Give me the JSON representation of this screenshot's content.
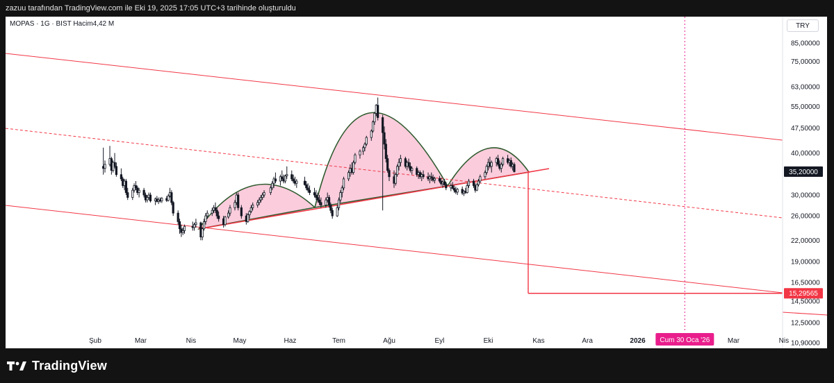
{
  "header": {
    "caption": "zazuu tarafından TradingView.com ile Eki 19, 2025 17:05 UTC+3 tarihinde oluşturuldu"
  },
  "symbol": {
    "info": "MOPAS · 1G · BIST  Hacim4,42 M"
  },
  "currency": "TRY",
  "brand": {
    "name": "TradingView"
  },
  "chart_data": {
    "type": "candlestick",
    "scale": "log",
    "y_ticks": [
      "85,00000",
      "75,00000",
      "63,00000",
      "55,00000",
      "47,50000",
      "40,00000",
      "35,00000",
      "30,00000",
      "26,00000",
      "22,00000",
      "19,00000",
      "16,50000",
      "14,50000",
      "12,50000",
      "10,90000"
    ],
    "x_ticks": [
      "Şub",
      "Mar",
      "Nis",
      "May",
      "Haz",
      "Tem",
      "Ağu",
      "Eyl",
      "Eki",
      "Kas",
      "Ara",
      "2026",
      "Mar",
      "Nis"
    ],
    "bold_x_ticks": [
      "2026"
    ],
    "price_labels": [
      {
        "text": "35,20000",
        "value": 35.2,
        "style": "current"
      },
      {
        "text": "15,29565",
        "value": 15.29565,
        "style": "target"
      }
    ],
    "crosshair_date_label": "Cum 30 Oca '26",
    "colors": {
      "up": "#131722",
      "down": "#131722",
      "trend": "#f23645",
      "arc_stroke": "#2e5a2e",
      "arc_fill": "#f8bbd0",
      "date_badge": "#e91e8c",
      "target_badge": "#f23645",
      "current_badge": "#131722"
    },
    "candles": [
      [
        "2025-02-06",
        36.5,
        41.5,
        34.5,
        36.0
      ],
      [
        "2025-02-07",
        36.0,
        38.0,
        35.0,
        37.0
      ],
      [
        "2025-02-10",
        37.0,
        42.0,
        36.5,
        38.5
      ],
      [
        "2025-02-11",
        38.5,
        39.0,
        34.5,
        35.5
      ],
      [
        "2025-02-12",
        35.5,
        38.0,
        35.0,
        37.5
      ],
      [
        "2025-02-13",
        37.5,
        40.0,
        36.0,
        36.5
      ],
      [
        "2025-02-14",
        36.5,
        37.5,
        34.0,
        34.5
      ],
      [
        "2025-02-17",
        34.5,
        36.0,
        33.0,
        33.5
      ],
      [
        "2025-02-18",
        33.5,
        34.0,
        31.5,
        32.0
      ],
      [
        "2025-02-19",
        32.0,
        33.5,
        31.0,
        33.0
      ],
      [
        "2025-02-20",
        33.0,
        33.5,
        30.0,
        30.5
      ],
      [
        "2025-02-21",
        30.5,
        31.5,
        29.0,
        29.5
      ],
      [
        "2025-02-24",
        29.5,
        31.5,
        29.0,
        31.0
      ],
      [
        "2025-02-25",
        31.0,
        32.5,
        30.5,
        32.0
      ],
      [
        "2025-02-26",
        32.0,
        33.0,
        31.0,
        31.5
      ],
      [
        "2025-02-27",
        31.5,
        32.0,
        30.0,
        30.5
      ],
      [
        "2025-02-28",
        30.5,
        31.5,
        29.5,
        31.0
      ],
      [
        "2025-03-03",
        31.0,
        31.5,
        29.5,
        30.0
      ],
      [
        "2025-03-04",
        30.0,
        30.5,
        28.5,
        29.0
      ],
      [
        "2025-03-05",
        29.0,
        30.0,
        28.5,
        29.5
      ],
      [
        "2025-03-06",
        29.5,
        30.5,
        29.0,
        30.0
      ],
      [
        "2025-03-07",
        30.0,
        30.5,
        28.5,
        28.8
      ],
      [
        "2025-03-10",
        28.8,
        29.5,
        28.0,
        29.2
      ],
      [
        "2025-03-11",
        29.2,
        29.8,
        28.5,
        28.7
      ],
      [
        "2025-03-12",
        28.7,
        29.5,
        28.2,
        29.0
      ],
      [
        "2025-03-13",
        29.0,
        29.5,
        28.5,
        28.8
      ],
      [
        "2025-03-14",
        28.8,
        29.6,
        28.4,
        29.3
      ],
      [
        "2025-03-17",
        29.3,
        29.8,
        28.6,
        28.9
      ],
      [
        "2025-03-18",
        28.9,
        30.2,
        28.7,
        29.8
      ],
      [
        "2025-03-19",
        29.8,
        31.5,
        29.5,
        30.5
      ],
      [
        "2025-03-20",
        30.5,
        31.0,
        28.0,
        28.5
      ],
      [
        "2025-03-21",
        28.5,
        28.8,
        26.0,
        26.5
      ],
      [
        "2025-03-24",
        26.5,
        27.0,
        24.5,
        25.0
      ],
      [
        "2025-03-25",
        25.0,
        25.5,
        23.0,
        23.8
      ],
      [
        "2025-03-26",
        23.8,
        24.5,
        22.5,
        23.2
      ],
      [
        "2025-03-27",
        23.2,
        24.0,
        22.8,
        23.5
      ],
      [
        "2025-03-28",
        23.5,
        24.5,
        23.0,
        24.2
      ],
      [
        "2025-04-02",
        24.2,
        25.0,
        23.5,
        24.0
      ],
      [
        "2025-04-03",
        24.0,
        24.8,
        23.5,
        24.5
      ],
      [
        "2025-04-04",
        24.5,
        25.5,
        24.0,
        24.8
      ],
      [
        "2025-04-07",
        24.8,
        25.0,
        22.0,
        22.5
      ],
      [
        "2025-04-08",
        22.5,
        24.0,
        22.0,
        23.8
      ],
      [
        "2025-04-09",
        23.8,
        25.5,
        23.5,
        25.0
      ],
      [
        "2025-04-10",
        25.0,
        26.5,
        24.5,
        26.0
      ],
      [
        "2025-04-11",
        26.0,
        27.0,
        25.5,
        26.5
      ],
      [
        "2025-04-14",
        26.5,
        27.5,
        26.0,
        27.0
      ],
      [
        "2025-04-15",
        27.0,
        28.0,
        26.5,
        27.5
      ],
      [
        "2025-04-16",
        27.5,
        28.5,
        26.5,
        27.0
      ],
      [
        "2025-04-17",
        27.0,
        27.5,
        25.5,
        26.0
      ],
      [
        "2025-04-18",
        26.0,
        26.8,
        25.0,
        25.5
      ],
      [
        "2025-04-21",
        25.5,
        26.0,
        24.0,
        24.5
      ],
      [
        "2025-04-22",
        24.5,
        26.0,
        24.2,
        25.8
      ],
      [
        "2025-04-24",
        25.8,
        27.0,
        25.5,
        26.5
      ],
      [
        "2025-04-25",
        26.5,
        28.0,
        26.0,
        27.5
      ],
      [
        "2025-04-28",
        27.5,
        29.0,
        27.0,
        28.5
      ],
      [
        "2025-04-29",
        28.5,
        30.5,
        28.0,
        30.0
      ],
      [
        "2025-04-30",
        30.0,
        30.5,
        27.0,
        27.5
      ],
      [
        "2025-05-02",
        27.5,
        28.0,
        25.5,
        26.0
      ],
      [
        "2025-05-05",
        26.0,
        26.5,
        24.5,
        25.0
      ],
      [
        "2025-05-06",
        25.0,
        26.5,
        24.8,
        26.2
      ],
      [
        "2025-05-07",
        26.2,
        27.0,
        25.5,
        26.8
      ],
      [
        "2025-05-08",
        26.8,
        28.0,
        26.5,
        27.5
      ],
      [
        "2025-05-09",
        27.5,
        28.5,
        27.0,
        28.0
      ],
      [
        "2025-05-12",
        28.0,
        29.0,
        27.5,
        28.5
      ],
      [
        "2025-05-13",
        28.5,
        29.5,
        28.0,
        29.0
      ],
      [
        "2025-05-14",
        29.0,
        30.0,
        28.5,
        29.5
      ],
      [
        "2025-05-15",
        29.5,
        30.5,
        29.0,
        30.0
      ],
      [
        "2025-05-16",
        30.0,
        31.0,
        29.5,
        30.5
      ],
      [
        "2025-05-20",
        30.5,
        32.0,
        30.0,
        31.5
      ],
      [
        "2025-05-21",
        31.5,
        33.0,
        31.0,
        32.5
      ],
      [
        "2025-05-22",
        32.5,
        34.0,
        31.5,
        33.5
      ],
      [
        "2025-05-23",
        33.5,
        35.0,
        32.5,
        33.0
      ],
      [
        "2025-05-26",
        33.0,
        34.5,
        32.0,
        34.0
      ],
      [
        "2025-05-27",
        34.0,
        35.5,
        33.0,
        33.5
      ],
      [
        "2025-05-28",
        33.5,
        34.5,
        32.5,
        33.0
      ],
      [
        "2025-05-29",
        33.0,
        34.5,
        32.5,
        34.2
      ],
      [
        "2025-05-30",
        34.2,
        36.5,
        33.5,
        34.5
      ],
      [
        "2025-06-02",
        34.5,
        35.5,
        33.0,
        33.5
      ],
      [
        "2025-06-03",
        33.5,
        34.5,
        32.5,
        33.0
      ],
      [
        "2025-06-04",
        33.0,
        34.0,
        32.0,
        32.5
      ],
      [
        "2025-06-05",
        32.5,
        33.5,
        31.5,
        33.0
      ],
      [
        "2025-06-10",
        33.0,
        34.0,
        32.0,
        32.2
      ],
      [
        "2025-06-11",
        32.2,
        33.0,
        31.0,
        31.5
      ],
      [
        "2025-06-12",
        31.5,
        32.5,
        30.5,
        31.0
      ],
      [
        "2025-06-13",
        31.0,
        32.0,
        30.0,
        30.5
      ],
      [
        "2025-06-16",
        30.5,
        31.5,
        29.5,
        30.0
      ],
      [
        "2025-06-17",
        30.0,
        31.0,
        29.0,
        29.5
      ],
      [
        "2025-06-18",
        29.5,
        30.5,
        28.5,
        29.0
      ],
      [
        "2025-06-19",
        29.0,
        30.0,
        28.0,
        28.5
      ],
      [
        "2025-06-20",
        28.5,
        29.5,
        27.5,
        28.0
      ],
      [
        "2025-06-23",
        28.0,
        29.5,
        27.5,
        29.0
      ],
      [
        "2025-06-24",
        29.0,
        30.5,
        28.5,
        29.5
      ],
      [
        "2025-06-25",
        29.5,
        30.0,
        27.5,
        28.0
      ],
      [
        "2025-06-26",
        28.0,
        28.5,
        26.5,
        27.0
      ],
      [
        "2025-06-27",
        27.0,
        27.5,
        25.5,
        26.0
      ],
      [
        "2025-06-30",
        26.0,
        28.0,
        25.8,
        27.5
      ],
      [
        "2025-07-01",
        27.5,
        29.5,
        27.0,
        29.0
      ],
      [
        "2025-07-02",
        29.0,
        31.0,
        28.5,
        30.5
      ],
      [
        "2025-07-03",
        30.5,
        32.0,
        29.5,
        31.5
      ],
      [
        "2025-07-04",
        31.5,
        34.0,
        31.0,
        33.5
      ],
      [
        "2025-07-07",
        33.5,
        35.5,
        33.0,
        35.0
      ],
      [
        "2025-07-08",
        35.0,
        37.0,
        34.0,
        36.0
      ],
      [
        "2025-07-09",
        36.0,
        37.5,
        34.5,
        35.0
      ],
      [
        "2025-07-10",
        35.0,
        38.0,
        34.5,
        37.5
      ],
      [
        "2025-07-11",
        37.5,
        40.0,
        37.0,
        39.5
      ],
      [
        "2025-07-14",
        39.5,
        41.0,
        38.5,
        40.5
      ],
      [
        "2025-07-16",
        40.5,
        42.0,
        39.5,
        41.5
      ],
      [
        "2025-07-17",
        41.5,
        43.0,
        40.5,
        42.5
      ],
      [
        "2025-07-18",
        42.5,
        45.0,
        42.0,
        44.5
      ],
      [
        "2025-07-21",
        44.5,
        47.0,
        43.5,
        46.5
      ],
      [
        "2025-07-22",
        46.5,
        50.0,
        46.0,
        49.5
      ],
      [
        "2025-07-23",
        49.5,
        53.0,
        48.5,
        52.5
      ],
      [
        "2025-07-24",
        52.5,
        56.0,
        51.5,
        55.5
      ],
      [
        "2025-07-25",
        55.5,
        58.5,
        50.0,
        51.0
      ],
      [
        "2025-07-28",
        51.0,
        52.0,
        27.0,
        46.0
      ],
      [
        "2025-07-29",
        46.0,
        48.0,
        41.0,
        42.5
      ],
      [
        "2025-07-30",
        42.5,
        44.0,
        37.5,
        38.5
      ],
      [
        "2025-07-31",
        38.5,
        39.5,
        35.0,
        35.5
      ],
      [
        "2025-08-01",
        35.5,
        36.0,
        33.0,
        34.0
      ],
      [
        "2025-08-04",
        34.0,
        35.5,
        31.5,
        32.5
      ],
      [
        "2025-08-05",
        32.5,
        35.0,
        32.0,
        34.5
      ],
      [
        "2025-08-06",
        34.5,
        37.0,
        34.0,
        36.5
      ],
      [
        "2025-08-07",
        36.5,
        38.5,
        35.5,
        37.5
      ],
      [
        "2025-08-08",
        37.5,
        39.5,
        36.5,
        38.5
      ],
      [
        "2025-08-11",
        38.5,
        39.0,
        36.0,
        36.5
      ],
      [
        "2025-08-12",
        36.5,
        38.0,
        35.5,
        37.5
      ],
      [
        "2025-08-13",
        37.5,
        38.5,
        36.0,
        36.5
      ],
      [
        "2025-08-14",
        36.5,
        37.5,
        35.0,
        35.5
      ],
      [
        "2025-08-15",
        35.5,
        36.5,
        34.5,
        36.0
      ],
      [
        "2025-08-18",
        36.0,
        36.5,
        34.0,
        34.5
      ],
      [
        "2025-08-19",
        34.5,
        35.5,
        33.5,
        35.0
      ],
      [
        "2025-08-20",
        35.0,
        35.5,
        33.5,
        34.0
      ],
      [
        "2025-08-21",
        34.0,
        35.0,
        33.0,
        34.5
      ],
      [
        "2025-08-22",
        34.5,
        35.5,
        33.5,
        34.0
      ],
      [
        "2025-08-25",
        34.0,
        35.0,
        33.0,
        33.5
      ],
      [
        "2025-08-26",
        33.5,
        34.5,
        32.5,
        34.0
      ],
      [
        "2025-08-27",
        34.0,
        35.0,
        33.0,
        33.8
      ],
      [
        "2025-08-28",
        33.8,
        34.5,
        32.8,
        33.2
      ],
      [
        "2025-08-29",
        33.2,
        34.0,
        32.5,
        33.6
      ],
      [
        "2025-09-01",
        33.6,
        34.2,
        32.6,
        33.0
      ],
      [
        "2025-09-02",
        33.0,
        33.8,
        32.0,
        32.4
      ],
      [
        "2025-09-03",
        32.4,
        33.2,
        31.5,
        32.8
      ],
      [
        "2025-09-04",
        32.8,
        33.5,
        32.0,
        32.2
      ],
      [
        "2025-09-05",
        32.2,
        32.8,
        31.0,
        31.5
      ],
      [
        "2025-09-08",
        31.5,
        32.5,
        30.8,
        32.0
      ],
      [
        "2025-09-09",
        32.0,
        32.8,
        31.2,
        31.4
      ],
      [
        "2025-09-10",
        31.4,
        32.0,
        30.5,
        31.0
      ],
      [
        "2025-09-11",
        31.0,
        31.8,
        30.2,
        30.6
      ],
      [
        "2025-09-12",
        30.6,
        31.5,
        30.0,
        31.2
      ],
      [
        "2025-09-15",
        31.2,
        31.8,
        30.0,
        30.4
      ],
      [
        "2025-09-16",
        30.4,
        31.0,
        29.8,
        30.8
      ],
      [
        "2025-09-17",
        30.8,
        31.5,
        30.2,
        30.5
      ],
      [
        "2025-09-18",
        30.5,
        32.5,
        30.3,
        32.0
      ],
      [
        "2025-09-19",
        32.0,
        33.5,
        31.5,
        33.0
      ],
      [
        "2025-09-22",
        33.0,
        33.5,
        31.5,
        32.0
      ],
      [
        "2025-09-23",
        32.0,
        32.5,
        30.5,
        31.0
      ],
      [
        "2025-09-24",
        31.0,
        32.5,
        30.8,
        32.2
      ],
      [
        "2025-09-25",
        32.2,
        33.5,
        31.8,
        33.0
      ],
      [
        "2025-09-26",
        33.0,
        34.5,
        32.5,
        34.0
      ],
      [
        "2025-09-29",
        34.0,
        35.5,
        33.5,
        35.0
      ],
      [
        "2025-09-30",
        35.0,
        37.0,
        34.5,
        36.5
      ],
      [
        "2025-10-01",
        36.5,
        38.5,
        35.5,
        37.5
      ],
      [
        "2025-10-02",
        37.5,
        39.0,
        36.0,
        36.5
      ],
      [
        "2025-10-03",
        36.5,
        38.0,
        35.0,
        37.5
      ],
      [
        "2025-10-06",
        37.5,
        39.0,
        36.5,
        38.5
      ],
      [
        "2025-10-07",
        38.5,
        39.5,
        36.5,
        37.0
      ],
      [
        "2025-10-08",
        37.0,
        38.0,
        35.5,
        36.0
      ],
      [
        "2025-10-09",
        36.0,
        37.5,
        35.0,
        37.0
      ],
      [
        "2025-10-10",
        37.0,
        39.0,
        36.5,
        38.5
      ],
      [
        "2025-10-13",
        38.5,
        39.5,
        37.0,
        37.5
      ],
      [
        "2025-10-14",
        37.5,
        38.5,
        36.5,
        38.0
      ],
      [
        "2025-10-15",
        38.0,
        38.8,
        36.0,
        36.5
      ],
      [
        "2025-10-16",
        36.5,
        37.5,
        35.5,
        37.0
      ],
      [
        "2025-10-17",
        37.0,
        37.5,
        35.0,
        35.2
      ]
    ]
  }
}
